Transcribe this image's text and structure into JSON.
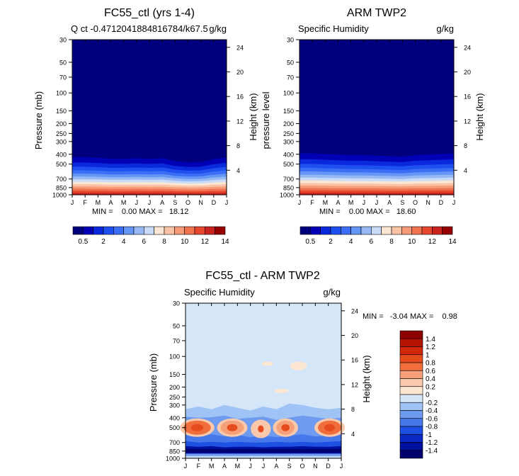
{
  "chart_data": [
    {
      "type": "heatmap",
      "title": "FC55_ctl (yrs 1-4)",
      "subtitle_left": "Q ct -0.4712041884816784/k67.5",
      "subtitle_right": "g/kg",
      "ylabel": "Pressure (mb)",
      "ylabel_right": "Height (km)",
      "x_ticks": [
        "J",
        "F",
        "M",
        "A",
        "M",
        "J",
        "J",
        "A",
        "S",
        "O",
        "N",
        "D",
        "J"
      ],
      "y_ticks": [
        "30",
        "50",
        "70",
        "100",
        "150",
        "200",
        "250",
        "300",
        "400",
        "500",
        "700",
        "850",
        "1000"
      ],
      "height_ticks": [
        "24",
        "20",
        "16",
        "12",
        "8",
        "4"
      ],
      "stats": "MIN =    0.00 MAX =   18.12",
      "min": 0.0,
      "max": 18.12,
      "colorbar_labels": [
        "0.5",
        "2",
        "4",
        "6",
        "8",
        "10",
        "12",
        "14"
      ],
      "moist_top_pressure": [
        330,
        330,
        335,
        345,
        345,
        340,
        345,
        340,
        370,
        385,
        380,
        350,
        330
      ]
    },
    {
      "type": "heatmap",
      "title": "ARM TWP2",
      "subtitle_left": "Specific Humidity",
      "subtitle_right": "g/kg",
      "ylabel": "pressure  level",
      "ylabel_right": "Height (km)",
      "x_ticks": [
        "J",
        "F",
        "M",
        "A",
        "M",
        "J",
        "J",
        "A",
        "S",
        "O",
        "N",
        "D",
        "J"
      ],
      "y_ticks": [
        "30",
        "50",
        "70",
        "100",
        "150",
        "200",
        "250",
        "300",
        "400",
        "500",
        "700",
        "850",
        "1000"
      ],
      "height_ticks": [
        "24",
        "20",
        "16",
        "12",
        "8",
        "4"
      ],
      "stats": "MIN =    0.00 MAX =   18.60",
      "min": 0.0,
      "max": 18.6,
      "colorbar_labels": [
        "0.5",
        "2",
        "4",
        "6",
        "8",
        "10",
        "12",
        "14"
      ],
      "moist_top_pressure": [
        295,
        295,
        300,
        305,
        310,
        310,
        315,
        320,
        325,
        310,
        305,
        300,
        295
      ]
    },
    {
      "type": "heatmap",
      "title": "FC55_ctl - ARM TWP2",
      "subtitle_left": "Specific Humidity",
      "subtitle_right": "g/kg",
      "ylabel": "Pressure (mb)",
      "ylabel_right": "Height (km)",
      "x_ticks": [
        "J",
        "F",
        "M",
        "A",
        "M",
        "J",
        "J",
        "A",
        "S",
        "O",
        "N",
        "D",
        "J"
      ],
      "y_ticks": [
        "30",
        "50",
        "70",
        "100",
        "150",
        "200",
        "250",
        "300",
        "400",
        "500",
        "700",
        "850",
        "1000"
      ],
      "height_ticks": [
        "24",
        "20",
        "16",
        "12",
        "8",
        "4"
      ],
      "stats": "MIN =   -3.04 MAX =    0.98",
      "min": -3.04,
      "max": 0.98,
      "colorbar_labels": [
        "1.4",
        "1.2",
        "1",
        "0.8",
        "0.6",
        "0.4",
        "0.2",
        "0",
        "-0.2",
        "-0.4",
        "-0.6",
        "-0.8",
        "-1",
        "-1.2",
        "-1.4"
      ]
    }
  ],
  "palettes": {
    "humidity": [
      "#00007f",
      "#0000b4",
      "#0a28dc",
      "#1e50f0",
      "#3c6ef5",
      "#6496f5",
      "#96b9f5",
      "#c8dcf8",
      "#fae6d2",
      "#fac3a5",
      "#f59b78",
      "#f07350",
      "#e6462d",
      "#c8231e",
      "#960000"
    ],
    "difference": [
      "#8c0000",
      "#b41400",
      "#d2280a",
      "#e64b1e",
      "#f06e3c",
      "#f5a078",
      "#fac8aa",
      "#fde6d2",
      "#d4e6f8",
      "#a0c3f5",
      "#6e9bf0",
      "#4678eb",
      "#1e50e1",
      "#0a28c3",
      "#000fa0",
      "#00006e"
    ]
  }
}
